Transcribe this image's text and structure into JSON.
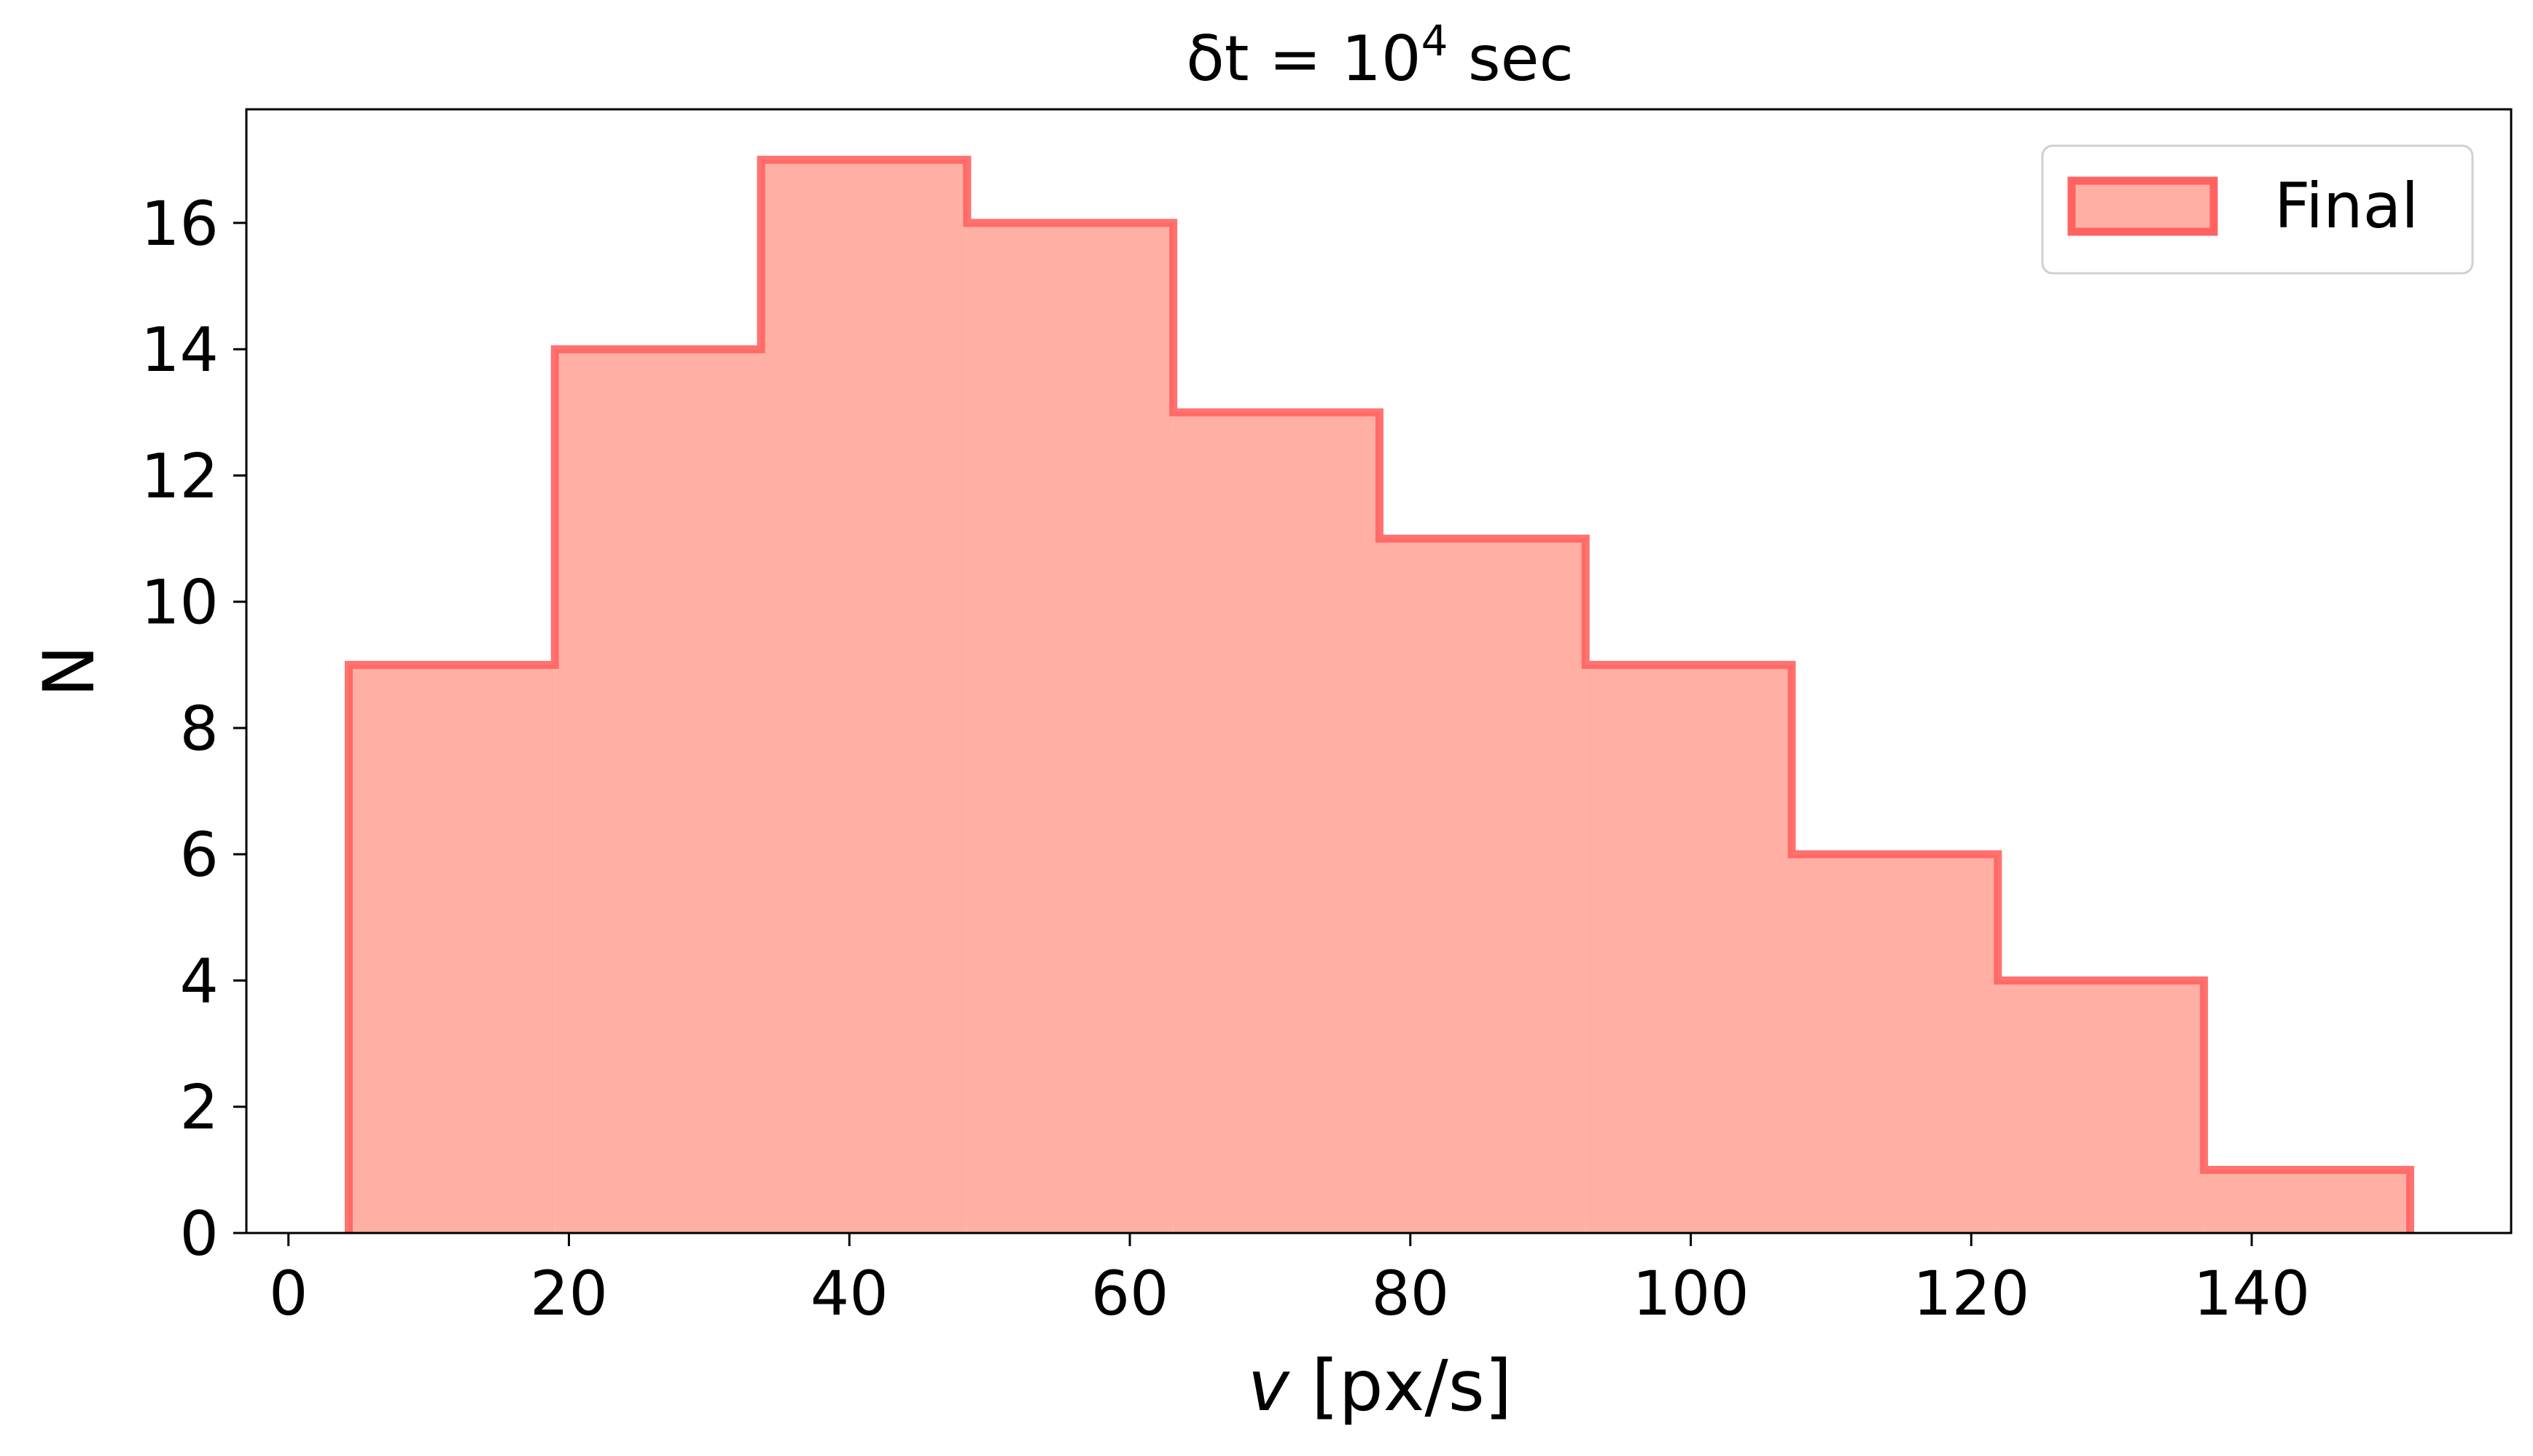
{
  "chart_data": {
    "type": "histogram",
    "title_prefix": "δt = 10",
    "title_superscript": "4",
    "title_suffix": " sec",
    "xlabel_var": "v",
    "xlabel_unit": " [px/s]",
    "ylabel": "N",
    "bin_edges": [
      4.3,
      19.0,
      33.7,
      48.4,
      63.1,
      77.8,
      92.5,
      107.2,
      121.9,
      136.6,
      151.3
    ],
    "counts": [
      9,
      14,
      17,
      16,
      13,
      11,
      9,
      6,
      4,
      1
    ],
    "xlim": [
      -3.0,
      158.5
    ],
    "ylim": [
      0,
      17.8
    ],
    "xticks": [
      "0",
      "20",
      "40",
      "60",
      "80",
      "100",
      "120",
      "140"
    ],
    "yticks": [
      "0",
      "2",
      "4",
      "6",
      "8",
      "10",
      "12",
      "14",
      "16"
    ],
    "xtick_values": [
      0,
      20,
      40,
      60,
      80,
      100,
      120,
      140
    ],
    "ytick_values": [
      0,
      2,
      4,
      6,
      8,
      10,
      12,
      14,
      16
    ],
    "series": [
      {
        "name": "Final",
        "fill_color": "#ffafa3",
        "edge_color": "#ff6361"
      }
    ],
    "legend_position": "upper right",
    "grid": false
  }
}
